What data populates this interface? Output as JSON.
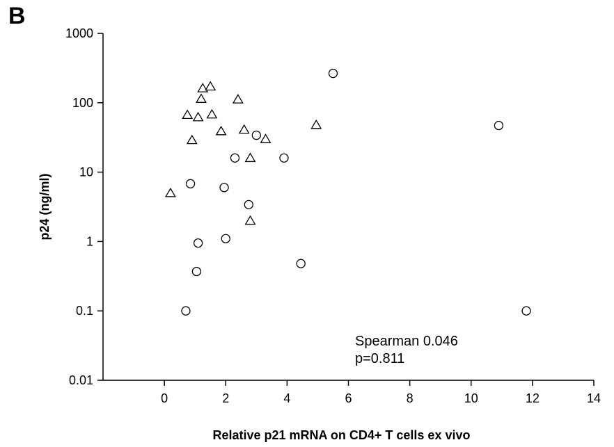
{
  "panel_label": "B",
  "chart_data": {
    "type": "scatter",
    "title": "",
    "xlabel": "Relative p21 mRNA on CD4+ T cells ex vivo",
    "ylabel": "p24 (ng/ml)",
    "xlim": [
      -2,
      14
    ],
    "ylim": [
      0.01,
      1000
    ],
    "yscale": "log",
    "x_ticks": [
      0,
      2,
      4,
      6,
      8,
      10,
      12,
      14
    ],
    "x_tick_labels": [
      "0",
      "2",
      "4",
      "6",
      "8",
      "10",
      "12",
      "14"
    ],
    "y_ticks": [
      0.01,
      0.1,
      1,
      10,
      100,
      1000
    ],
    "y_tick_labels": [
      "0.01",
      "0.1",
      "1",
      "10",
      "100",
      "1000"
    ],
    "grid": false,
    "annotations": [
      "Spearman 0.046",
      "p=0.811"
    ],
    "series": [
      {
        "marker": "circle",
        "points": [
          [
            5.5,
            265
          ],
          [
            10.9,
            47
          ],
          [
            3.0,
            34
          ],
          [
            2.3,
            16
          ],
          [
            3.9,
            16
          ],
          [
            0.85,
            6.8
          ],
          [
            1.95,
            6.0
          ],
          [
            2.75,
            3.4
          ],
          [
            1.1,
            0.95
          ],
          [
            2.0,
            1.1
          ],
          [
            1.05,
            0.37
          ],
          [
            4.45,
            0.48
          ],
          [
            0.7,
            0.1
          ],
          [
            11.8,
            0.1
          ]
        ]
      },
      {
        "marker": "triangle",
        "points": [
          [
            1.25,
            162
          ],
          [
            1.5,
            172
          ],
          [
            1.2,
            114
          ],
          [
            2.4,
            112
          ],
          [
            0.75,
            67
          ],
          [
            1.55,
            68
          ],
          [
            1.1,
            62
          ],
          [
            4.95,
            48
          ],
          [
            2.6,
            41
          ],
          [
            1.85,
            39
          ],
          [
            3.3,
            30
          ],
          [
            0.9,
            29
          ],
          [
            2.8,
            16
          ],
          [
            0.2,
            5.0
          ],
          [
            2.8,
            2.0
          ]
        ]
      }
    ]
  }
}
